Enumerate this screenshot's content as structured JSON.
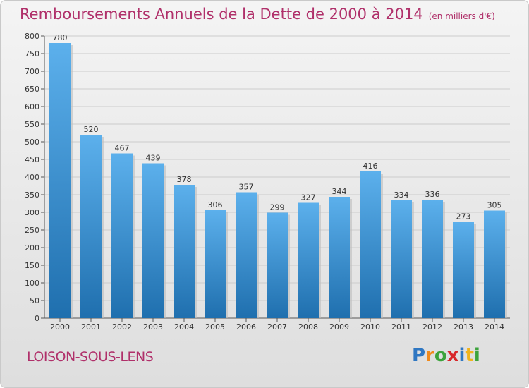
{
  "header": {
    "title": "Remboursements Annuels de la Dette de 2000 à 2014",
    "unit": "(en milliers d'€)"
  },
  "footer": {
    "commune": "LOISON-SOUS-LENS",
    "logo": "Proxiti"
  },
  "colors": {
    "title": "#b0306a",
    "bar_top": "#5cb0ec",
    "bar_bottom": "#1f6fae"
  },
  "chart_data": {
    "type": "bar",
    "categories": [
      "2000",
      "2001",
      "2002",
      "2003",
      "2004",
      "2005",
      "2006",
      "2007",
      "2008",
      "2009",
      "2010",
      "2011",
      "2012",
      "2013",
      "2014"
    ],
    "values": [
      780,
      520,
      467,
      439,
      378,
      306,
      357,
      299,
      327,
      344,
      416,
      334,
      336,
      273,
      305
    ],
    "ylim": [
      0,
      800
    ],
    "yticks": [
      0,
      50,
      100,
      150,
      200,
      250,
      300,
      350,
      400,
      450,
      500,
      550,
      600,
      650,
      700,
      750,
      800
    ],
    "grid": true,
    "data_labels": true
  }
}
